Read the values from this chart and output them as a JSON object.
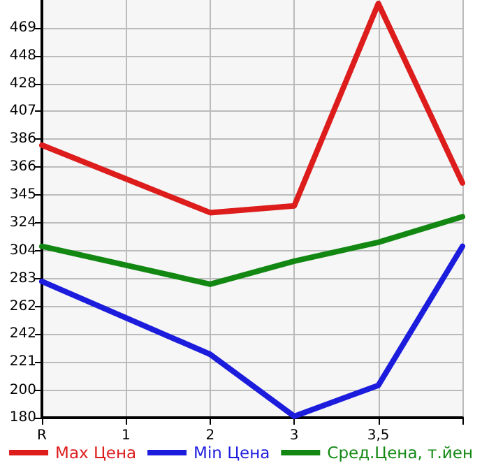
{
  "chart_data": {
    "type": "line",
    "categories": [
      "R",
      "1",
      "2",
      "3",
      "3,5",
      null
    ],
    "series": [
      {
        "name": "Max Цена",
        "color": "#dd1c1c",
        "values": [
          382,
          null,
          332,
          337,
          487,
          354
        ]
      },
      {
        "name": "Min Цена",
        "color": "#1c1cdd",
        "values": [
          281,
          null,
          227,
          181,
          204,
          307
        ]
      },
      {
        "name": "Сред.Цена, т.йен",
        "color": "#128812",
        "values": [
          307,
          null,
          279,
          296,
          310,
          329
        ]
      }
    ],
    "ylim": [
      180,
      489.6
    ],
    "yticks": [
      {
        "value": 180,
        "label": "180"
      },
      {
        "value": 200.4,
        "label": "200"
      },
      {
        "value": 221.3,
        "label": "221"
      },
      {
        "value": 241.9,
        "label": "242"
      },
      {
        "value": 262.4,
        "label": "262"
      },
      {
        "value": 283.2,
        "label": "283"
      },
      {
        "value": 303.9,
        "label": "304"
      },
      {
        "value": 324.5,
        "label": "324"
      },
      {
        "value": 345.1,
        "label": "345"
      },
      {
        "value": 365.8,
        "label": "366"
      },
      {
        "value": 386.4,
        "label": "386"
      },
      {
        "value": 407.1,
        "label": "407"
      },
      {
        "value": 427.7,
        "label": "428"
      },
      {
        "value": 448.4,
        "label": "448"
      },
      {
        "value": 469,
        "label": "469"
      }
    ],
    "grid": true,
    "legend": "bottom",
    "marker": "none",
    "line_style": "solid"
  }
}
